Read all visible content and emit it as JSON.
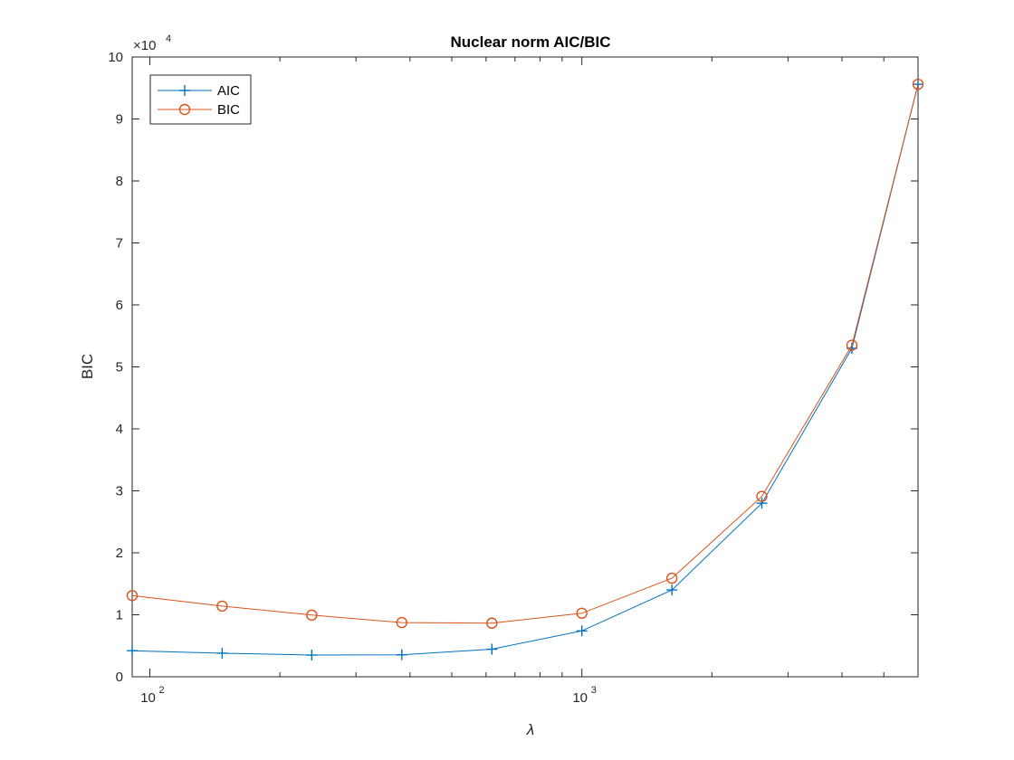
{
  "chart_data": {
    "type": "line",
    "title": "Nuclear norm AIC/BIC",
    "xlabel": "λ",
    "ylabel": "BIC",
    "xscale": "log",
    "xlim": [
      91,
      6000
    ],
    "ylim": [
      0,
      100000
    ],
    "y_exponent_label": "×10",
    "y_exponent_power": "4",
    "y_ticks": [
      0,
      10000,
      20000,
      30000,
      40000,
      50000,
      60000,
      70000,
      80000,
      90000,
      100000
    ],
    "y_tick_labels": [
      "0",
      "1",
      "2",
      "3",
      "4",
      "5",
      "6",
      "7",
      "8",
      "9",
      "10"
    ],
    "x_ticks": [
      100,
      1000
    ],
    "x_tick_base": "10",
    "x_tick_powers": [
      "2",
      "3"
    ],
    "grid": false,
    "legend_position": "top-left",
    "x": [
      91,
      147,
      237,
      383,
      619,
      1000,
      1616,
      2610,
      4218,
      6000
    ],
    "series": [
      {
        "name": "AIC",
        "color": "#0072BD",
        "marker": "plus",
        "values": [
          4200,
          3800,
          3500,
          3550,
          4450,
          7400,
          14000,
          28000,
          53000,
          95600
        ]
      },
      {
        "name": "BIC",
        "color": "#D95319",
        "marker": "circle",
        "values": [
          13100,
          11400,
          9950,
          8750,
          8650,
          10250,
          15900,
          29100,
          53500,
          95600
        ]
      }
    ]
  }
}
